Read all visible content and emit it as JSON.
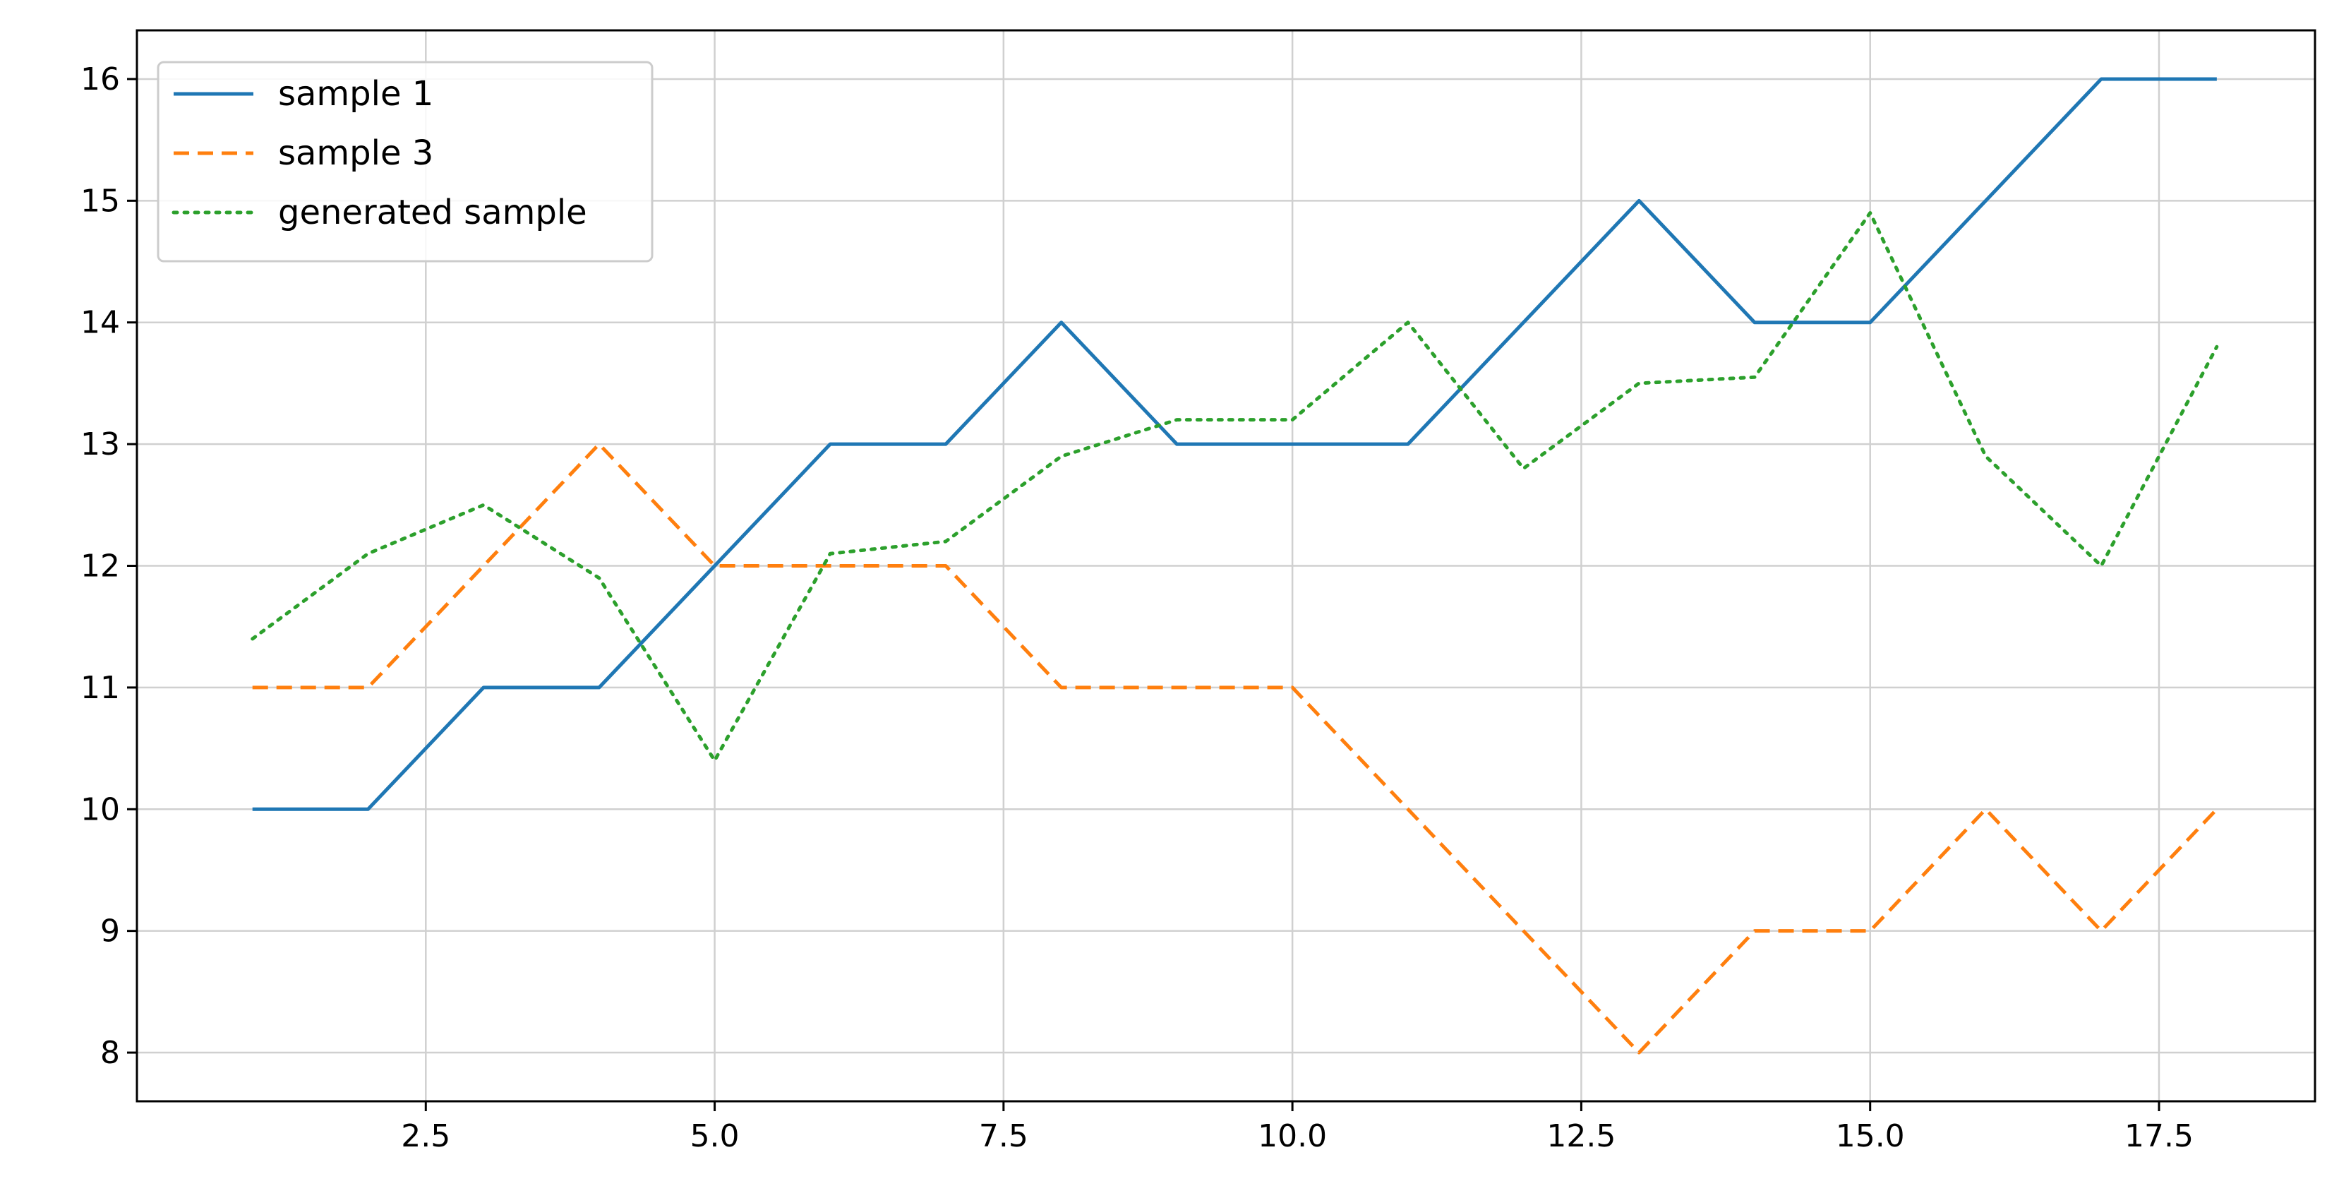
{
  "chart_data": {
    "type": "line",
    "title": "",
    "xlabel": "",
    "ylabel": "",
    "xlim": [
      0.0,
      18.85
    ],
    "ylim": [
      7.6,
      16.4
    ],
    "xticks": [
      2.5,
      5.0,
      7.5,
      10.0,
      12.5,
      15.0,
      17.5
    ],
    "xtick_labels": [
      "2.5",
      "5.0",
      "7.5",
      "10.0",
      "12.5",
      "15.0",
      "17.5"
    ],
    "yticks": [
      8,
      9,
      10,
      11,
      12,
      13,
      14,
      15,
      16
    ],
    "ytick_labels": [
      "8",
      "9",
      "10",
      "11",
      "12",
      "13",
      "14",
      "15",
      "16"
    ],
    "grid": true,
    "legend_position": "upper-left",
    "x": [
      1,
      2,
      3,
      4,
      5,
      6,
      7,
      8,
      9,
      10,
      11,
      12,
      13,
      14,
      15,
      16,
      17,
      18
    ],
    "series": [
      {
        "name": "sample 1",
        "color": "#1f77b4",
        "style": "solid",
        "values": [
          10,
          10,
          11,
          11,
          12,
          13,
          13,
          14,
          13,
          13,
          13,
          14,
          15,
          14,
          14,
          15,
          16,
          16
        ]
      },
      {
        "name": "sample 3",
        "color": "#ff7f0e",
        "style": "dashed",
        "values": [
          11,
          11,
          12,
          13,
          12,
          12,
          12,
          11,
          11,
          11,
          10,
          9,
          8,
          9,
          9,
          10,
          9,
          10
        ]
      },
      {
        "name": "generated sample",
        "color": "#2ca02c",
        "style": "dotted",
        "values": [
          11.4,
          12.1,
          12.5,
          11.9,
          10.4,
          12.1,
          12.2,
          12.9,
          13.2,
          13.2,
          14.0,
          12.8,
          13.5,
          13.55,
          14.9,
          12.9,
          12.0,
          13.8
        ]
      }
    ]
  }
}
